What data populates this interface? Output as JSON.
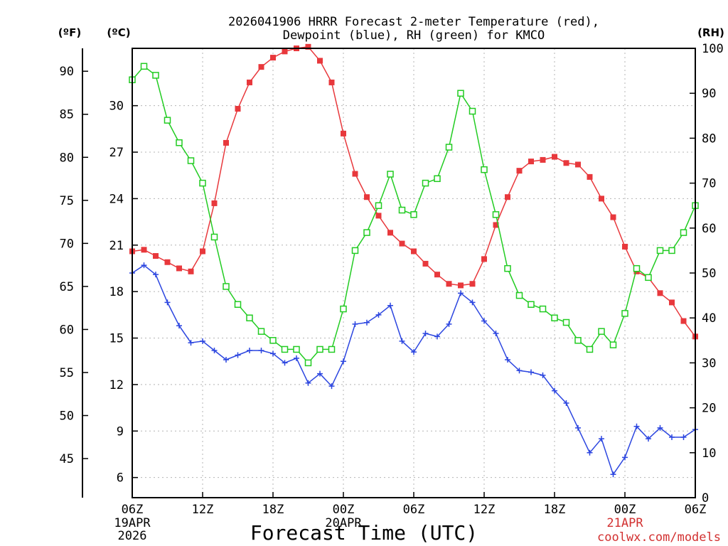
{
  "chart_data": {
    "type": "line",
    "title_lines": [
      "2026041906 HRRR Forecast 2-meter Temperature (red),",
      "Dewpoint (blue), RH (green) for KMCO"
    ],
    "xlabel": "Forecast Time (UTC)",
    "watermark": "coolwx.com/models",
    "left_unit_f": "(ºF)",
    "left_unit_c": "(ºC)",
    "right_unit": "(RH)",
    "x_range_hours": [
      0,
      48
    ],
    "x_ticks": [
      {
        "h": 0,
        "label": "06Z"
      },
      {
        "h": 6,
        "label": "12Z"
      },
      {
        "h": 12,
        "label": "18Z"
      },
      {
        "h": 18,
        "label": "00Z"
      },
      {
        "h": 24,
        "label": "06Z"
      },
      {
        "h": 30,
        "label": "12Z"
      },
      {
        "h": 36,
        "label": "18Z"
      },
      {
        "h": 42,
        "label": "00Z"
      },
      {
        "h": 48,
        "label": "06Z"
      }
    ],
    "date_labels": [
      {
        "h": 0,
        "lines": [
          "19APR",
          "2026"
        ]
      },
      {
        "h": 18,
        "lines": [
          "20APR"
        ]
      },
      {
        "h": 42,
        "lines": [
          "21APR"
        ]
      }
    ],
    "celsius_axis": {
      "range": [
        4.7,
        33.7
      ],
      "ticks": [
        6,
        9,
        12,
        15,
        18,
        21,
        24,
        27,
        30
      ]
    },
    "fahrenheit_ticks": [
      45,
      50,
      55,
      60,
      65,
      70,
      75,
      80,
      85,
      90
    ],
    "rh_axis": {
      "range": [
        0,
        100
      ],
      "ticks": [
        0,
        10,
        20,
        30,
        40,
        50,
        60,
        70,
        80,
        90,
        100
      ]
    },
    "series": [
      {
        "name": "Temperature",
        "unit": "C",
        "color": "#e8383c",
        "marker": "filled-square",
        "values": [
          20.6,
          20.7,
          20.3,
          19.9,
          19.5,
          19.3,
          20.6,
          23.7,
          27.6,
          29.8,
          31.5,
          32.5,
          33.1,
          33.5,
          33.7,
          33.8,
          32.9,
          31.5,
          28.2,
          25.6,
          24.1,
          22.9,
          21.8,
          21.1,
          20.6,
          19.8,
          19.1,
          18.5,
          18.4,
          18.5,
          20.1,
          22.3,
          24.1,
          25.8,
          26.4,
          26.5,
          26.7,
          26.3,
          26.2,
          25.4,
          24.0,
          22.8,
          20.9,
          19.3,
          18.9,
          17.9,
          17.3,
          16.1,
          15.1
        ]
      },
      {
        "name": "Dewpoint",
        "unit": "C",
        "color": "#2c46e0",
        "marker": "plus",
        "values": [
          19.2,
          19.7,
          19.1,
          17.3,
          15.8,
          14.7,
          14.8,
          14.2,
          13.6,
          13.9,
          14.2,
          14.2,
          14.0,
          13.4,
          13.7,
          12.1,
          12.7,
          11.9,
          13.5,
          15.9,
          16.0,
          16.5,
          17.1,
          14.8,
          14.1,
          15.3,
          15.1,
          15.9,
          17.9,
          17.3,
          16.1,
          15.3,
          13.6,
          12.9,
          12.8,
          12.6,
          11.6,
          10.8,
          9.2,
          7.6,
          8.5,
          6.2,
          7.3,
          9.3,
          8.5,
          9.2,
          8.6,
          8.6,
          9.1
        ]
      },
      {
        "name": "RH",
        "unit": "%",
        "color": "#22cc22",
        "marker": "open-square",
        "values": [
          93,
          96,
          94,
          84,
          79,
          75,
          70,
          58,
          47,
          43,
          40,
          37,
          35,
          33,
          33,
          30,
          33,
          33,
          42,
          55,
          59,
          65,
          72,
          64,
          63,
          70,
          71,
          78,
          90,
          86,
          73,
          63,
          51,
          45,
          43,
          42,
          40,
          39,
          35,
          33,
          37,
          34,
          41,
          51,
          49,
          55,
          55,
          59,
          65
        ]
      }
    ]
  }
}
